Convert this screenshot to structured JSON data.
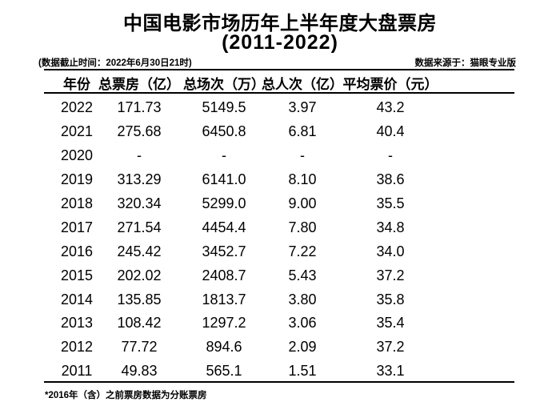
{
  "page": {
    "title": "中国电影市场历年上半年度大盘票房",
    "subtitle": "(2011-2022)",
    "meta_left": "(数据截止时间：2022年6月30日21时)",
    "meta_right": "数据来源于：猫眼专业版",
    "footnote": "*2016年（含）之前票房数据为分账票房"
  },
  "colors": {
    "text": "#000000",
    "background": "#ffffff",
    "rule": "#000000"
  },
  "table": {
    "headers": [
      "年份",
      "总票房（亿）",
      "总场次（万）",
      "总人次（亿）",
      "平均票价（元）"
    ],
    "rows": [
      {
        "year": "2022",
        "box_office": "171.73",
        "sessions": "5149.5",
        "admissions": "3.97",
        "avg_price": "43.2"
      },
      {
        "year": "2021",
        "box_office": "275.68",
        "sessions": "6450.8",
        "admissions": "6.81",
        "avg_price": "40.4"
      },
      {
        "year": "2020",
        "box_office": "-",
        "sessions": "-",
        "admissions": "-",
        "avg_price": "-"
      },
      {
        "year": "2019",
        "box_office": "313.29",
        "sessions": "6141.0",
        "admissions": "8.10",
        "avg_price": "38.6"
      },
      {
        "year": "2018",
        "box_office": "320.34",
        "sessions": "5299.0",
        "admissions": "9.00",
        "avg_price": "35.5"
      },
      {
        "year": "2017",
        "box_office": "271.54",
        "sessions": "4454.4",
        "admissions": "7.80",
        "avg_price": "34.8"
      },
      {
        "year": "2016",
        "box_office": "245.42",
        "sessions": "3452.7",
        "admissions": "7.22",
        "avg_price": "34.0"
      },
      {
        "year": "2015",
        "box_office": "202.02",
        "sessions": "2408.7",
        "admissions": "5.43",
        "avg_price": "37.2"
      },
      {
        "year": "2014",
        "box_office": "135.85",
        "sessions": "1813.7",
        "admissions": "3.80",
        "avg_price": "35.8"
      },
      {
        "year": "2013",
        "box_office": "108.42",
        "sessions": "1297.2",
        "admissions": "3.06",
        "avg_price": "35.4"
      },
      {
        "year": "2012",
        "box_office": "77.72",
        "sessions": "894.6",
        "admissions": "2.09",
        "avg_price": "37.2"
      },
      {
        "year": "2011",
        "box_office": "49.83",
        "sessions": "565.1",
        "admissions": "1.51",
        "avg_price": "33.1"
      }
    ]
  },
  "chart_data": {
    "type": "table",
    "title": "中国电影市场历年上半年度大盘票房 (2011-2022)",
    "data_cutoff": "2022年6月30日21时",
    "source": "猫眼专业版",
    "note": "*2016年（含）之前票房数据为分账票房",
    "columns": [
      "年份",
      "总票房（亿）",
      "总场次（万）",
      "总人次（亿）",
      "平均票价（元）"
    ],
    "rows": [
      [
        "2022",
        171.73,
        5149.5,
        3.97,
        43.2
      ],
      [
        "2021",
        275.68,
        6450.8,
        6.81,
        40.4
      ],
      [
        "2020",
        null,
        null,
        null,
        null
      ],
      [
        "2019",
        313.29,
        6141.0,
        8.1,
        38.6
      ],
      [
        "2018",
        320.34,
        5299.0,
        9.0,
        35.5
      ],
      [
        "2017",
        271.54,
        4454.4,
        7.8,
        34.8
      ],
      [
        "2016",
        245.42,
        3452.7,
        7.22,
        34.0
      ],
      [
        "2015",
        202.02,
        2408.7,
        5.43,
        37.2
      ],
      [
        "2014",
        135.85,
        1813.7,
        3.8,
        35.8
      ],
      [
        "2013",
        108.42,
        1297.2,
        3.06,
        35.4
      ],
      [
        "2012",
        77.72,
        894.6,
        2.09,
        37.2
      ],
      [
        "2011",
        49.83,
        565.1,
        1.51,
        33.1
      ]
    ]
  }
}
